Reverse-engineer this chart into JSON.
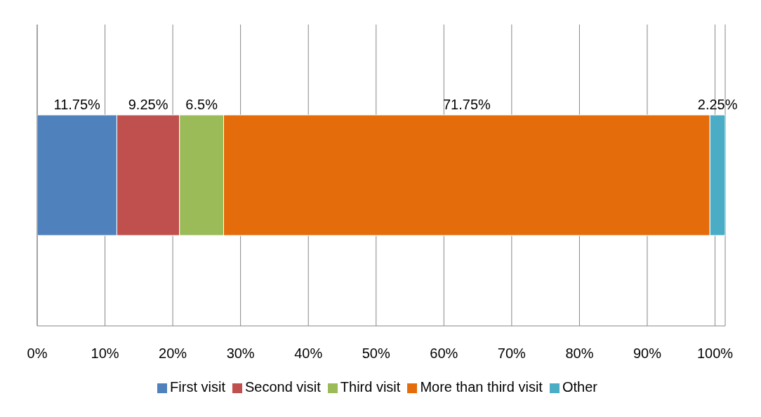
{
  "chart_data": {
    "type": "bar",
    "orientation": "horizontal",
    "stacked": true,
    "categories": [
      null
    ],
    "series": [
      {
        "name": "First visit",
        "color": "#4f81bd",
        "values": [
          11.75
        ],
        "value_labels": [
          "11.75%"
        ]
      },
      {
        "name": "Second visit",
        "color": "#c0504d",
        "values": [
          9.25
        ],
        "value_labels": [
          "9.25%"
        ]
      },
      {
        "name": "Third visit",
        "color": "#9bbb59",
        "values": [
          6.5
        ],
        "value_labels": [
          "6.5%"
        ]
      },
      {
        "name": "More than third visit",
        "color": "#e46c0a",
        "values": [
          71.75
        ],
        "value_labels": [
          "71.75%"
        ]
      },
      {
        "name": "Other",
        "color": "#4bacc6",
        "values": [
          2.25
        ],
        "value_labels": [
          "2.25%"
        ]
      }
    ],
    "xlim": [
      0,
      101.5
    ],
    "xticks": [
      {
        "value": 0,
        "label": "0%"
      },
      {
        "value": 10,
        "label": "10%"
      },
      {
        "value": 20,
        "label": "20%"
      },
      {
        "value": 30,
        "label": "30%"
      },
      {
        "value": 40,
        "label": "40%"
      },
      {
        "value": 50,
        "label": "50%"
      },
      {
        "value": 60,
        "label": "60%"
      },
      {
        "value": 70,
        "label": "70%"
      },
      {
        "value": 80,
        "label": "80%"
      },
      {
        "value": 90,
        "label": "90%"
      },
      {
        "value": 100,
        "label": "100%"
      }
    ],
    "grid": "x",
    "legend": "bottom",
    "tick_labels": "x"
  }
}
